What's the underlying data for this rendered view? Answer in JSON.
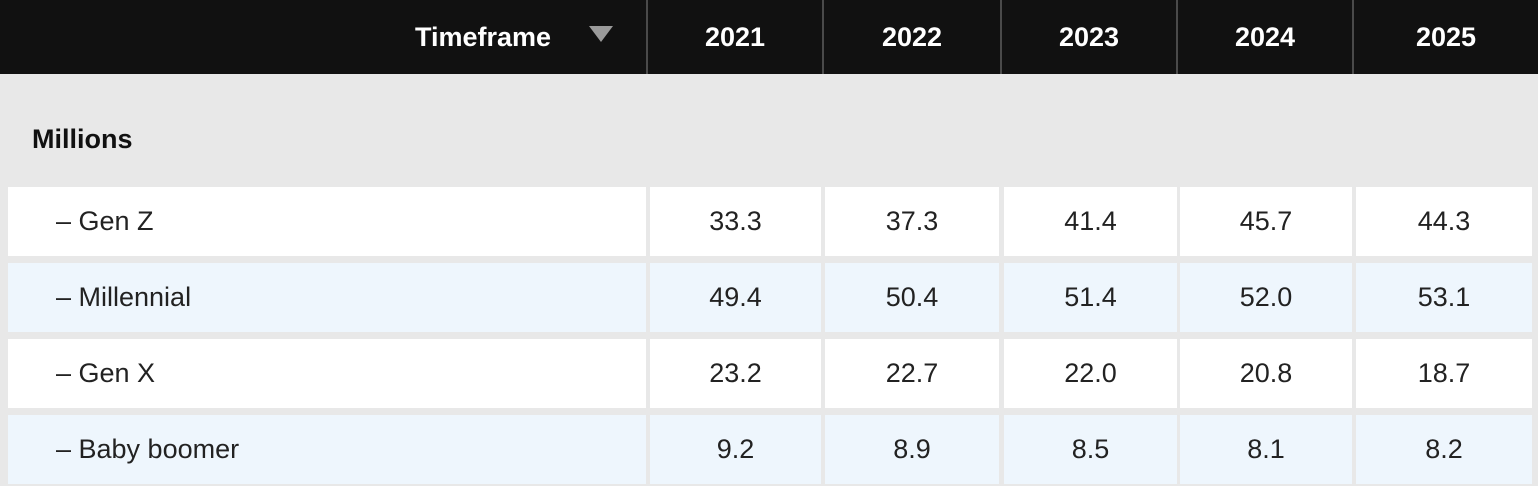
{
  "header": {
    "timeframe_label": "Timeframe",
    "years": [
      "2021",
      "2022",
      "2023",
      "2024",
      "2025"
    ]
  },
  "section_label": "Millions",
  "rows": [
    {
      "label": "– Gen Z",
      "values": [
        "33.3",
        "37.3",
        "41.4",
        "45.7",
        "44.3"
      ]
    },
    {
      "label": "– Millennial",
      "values": [
        "49.4",
        "50.4",
        "51.4",
        "52.0",
        "53.1"
      ]
    },
    {
      "label": "– Gen X",
      "values": [
        "23.2",
        "22.7",
        "22.0",
        "20.8",
        "18.7"
      ]
    },
    {
      "label": "– Baby boomer",
      "values": [
        "9.2",
        "8.9",
        "8.5",
        "8.1",
        "8.2"
      ]
    }
  ],
  "colors": {
    "header_bg": "#111111",
    "row_odd_bg": "#ffffff",
    "row_even_bg": "#eef6fd",
    "page_bg": "#e8e8e8"
  },
  "chart_data": {
    "type": "table",
    "columns": [
      "2021",
      "2022",
      "2023",
      "2024",
      "2025"
    ],
    "series": [
      {
        "name": "– Gen Z",
        "values": [
          33.3,
          37.3,
          41.4,
          45.7,
          44.3
        ]
      },
      {
        "name": "– Millennial",
        "values": [
          49.4,
          50.4,
          51.4,
          52.0,
          53.1
        ]
      },
      {
        "name": "– Gen X",
        "values": [
          23.2,
          22.7,
          22.0,
          20.8,
          18.7
        ]
      },
      {
        "name": "– Baby boomer",
        "values": [
          9.2,
          8.9,
          8.5,
          8.1,
          8.2
        ]
      }
    ],
    "unit": "Millions",
    "header": "Timeframe"
  }
}
